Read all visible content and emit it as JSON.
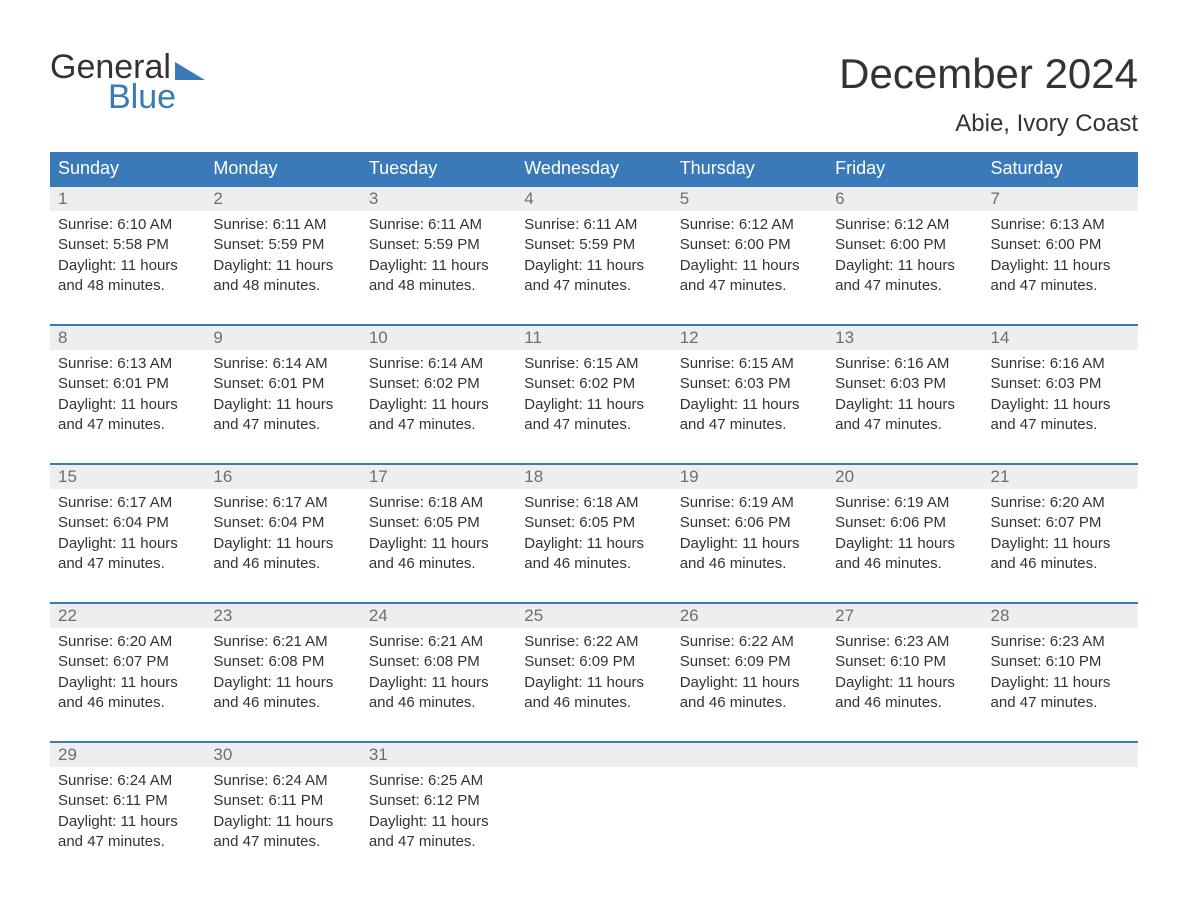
{
  "logo": {
    "word1": "General",
    "word2": "Blue",
    "triangle_color": "#3a7ab8"
  },
  "title": "December 2024",
  "location": "Abie, Ivory Coast",
  "header_bg": "#3a7ab8",
  "header_text_color": "#ffffff",
  "daynum_bg": "#eeeeee",
  "daynum_border": "#3a7ab8",
  "daynum_color": "#6e6e6e",
  "body_text_color": "#333333",
  "days": [
    "Sunday",
    "Monday",
    "Tuesday",
    "Wednesday",
    "Thursday",
    "Friday",
    "Saturday"
  ],
  "weeks": [
    [
      {
        "n": "1",
        "sr": "Sunrise: 6:10 AM",
        "ss": "Sunset: 5:58 PM",
        "d1": "Daylight: 11 hours",
        "d2": "and 48 minutes."
      },
      {
        "n": "2",
        "sr": "Sunrise: 6:11 AM",
        "ss": "Sunset: 5:59 PM",
        "d1": "Daylight: 11 hours",
        "d2": "and 48 minutes."
      },
      {
        "n": "3",
        "sr": "Sunrise: 6:11 AM",
        "ss": "Sunset: 5:59 PM",
        "d1": "Daylight: 11 hours",
        "d2": "and 48 minutes."
      },
      {
        "n": "4",
        "sr": "Sunrise: 6:11 AM",
        "ss": "Sunset: 5:59 PM",
        "d1": "Daylight: 11 hours",
        "d2": "and 47 minutes."
      },
      {
        "n": "5",
        "sr": "Sunrise: 6:12 AM",
        "ss": "Sunset: 6:00 PM",
        "d1": "Daylight: 11 hours",
        "d2": "and 47 minutes."
      },
      {
        "n": "6",
        "sr": "Sunrise: 6:12 AM",
        "ss": "Sunset: 6:00 PM",
        "d1": "Daylight: 11 hours",
        "d2": "and 47 minutes."
      },
      {
        "n": "7",
        "sr": "Sunrise: 6:13 AM",
        "ss": "Sunset: 6:00 PM",
        "d1": "Daylight: 11 hours",
        "d2": "and 47 minutes."
      }
    ],
    [
      {
        "n": "8",
        "sr": "Sunrise: 6:13 AM",
        "ss": "Sunset: 6:01 PM",
        "d1": "Daylight: 11 hours",
        "d2": "and 47 minutes."
      },
      {
        "n": "9",
        "sr": "Sunrise: 6:14 AM",
        "ss": "Sunset: 6:01 PM",
        "d1": "Daylight: 11 hours",
        "d2": "and 47 minutes."
      },
      {
        "n": "10",
        "sr": "Sunrise: 6:14 AM",
        "ss": "Sunset: 6:02 PM",
        "d1": "Daylight: 11 hours",
        "d2": "and 47 minutes."
      },
      {
        "n": "11",
        "sr": "Sunrise: 6:15 AM",
        "ss": "Sunset: 6:02 PM",
        "d1": "Daylight: 11 hours",
        "d2": "and 47 minutes."
      },
      {
        "n": "12",
        "sr": "Sunrise: 6:15 AM",
        "ss": "Sunset: 6:03 PM",
        "d1": "Daylight: 11 hours",
        "d2": "and 47 minutes."
      },
      {
        "n": "13",
        "sr": "Sunrise: 6:16 AM",
        "ss": "Sunset: 6:03 PM",
        "d1": "Daylight: 11 hours",
        "d2": "and 47 minutes."
      },
      {
        "n": "14",
        "sr": "Sunrise: 6:16 AM",
        "ss": "Sunset: 6:03 PM",
        "d1": "Daylight: 11 hours",
        "d2": "and 47 minutes."
      }
    ],
    [
      {
        "n": "15",
        "sr": "Sunrise: 6:17 AM",
        "ss": "Sunset: 6:04 PM",
        "d1": "Daylight: 11 hours",
        "d2": "and 47 minutes."
      },
      {
        "n": "16",
        "sr": "Sunrise: 6:17 AM",
        "ss": "Sunset: 6:04 PM",
        "d1": "Daylight: 11 hours",
        "d2": "and 46 minutes."
      },
      {
        "n": "17",
        "sr": "Sunrise: 6:18 AM",
        "ss": "Sunset: 6:05 PM",
        "d1": "Daylight: 11 hours",
        "d2": "and 46 minutes."
      },
      {
        "n": "18",
        "sr": "Sunrise: 6:18 AM",
        "ss": "Sunset: 6:05 PM",
        "d1": "Daylight: 11 hours",
        "d2": "and 46 minutes."
      },
      {
        "n": "19",
        "sr": "Sunrise: 6:19 AM",
        "ss": "Sunset: 6:06 PM",
        "d1": "Daylight: 11 hours",
        "d2": "and 46 minutes."
      },
      {
        "n": "20",
        "sr": "Sunrise: 6:19 AM",
        "ss": "Sunset: 6:06 PM",
        "d1": "Daylight: 11 hours",
        "d2": "and 46 minutes."
      },
      {
        "n": "21",
        "sr": "Sunrise: 6:20 AM",
        "ss": "Sunset: 6:07 PM",
        "d1": "Daylight: 11 hours",
        "d2": "and 46 minutes."
      }
    ],
    [
      {
        "n": "22",
        "sr": "Sunrise: 6:20 AM",
        "ss": "Sunset: 6:07 PM",
        "d1": "Daylight: 11 hours",
        "d2": "and 46 minutes."
      },
      {
        "n": "23",
        "sr": "Sunrise: 6:21 AM",
        "ss": "Sunset: 6:08 PM",
        "d1": "Daylight: 11 hours",
        "d2": "and 46 minutes."
      },
      {
        "n": "24",
        "sr": "Sunrise: 6:21 AM",
        "ss": "Sunset: 6:08 PM",
        "d1": "Daylight: 11 hours",
        "d2": "and 46 minutes."
      },
      {
        "n": "25",
        "sr": "Sunrise: 6:22 AM",
        "ss": "Sunset: 6:09 PM",
        "d1": "Daylight: 11 hours",
        "d2": "and 46 minutes."
      },
      {
        "n": "26",
        "sr": "Sunrise: 6:22 AM",
        "ss": "Sunset: 6:09 PM",
        "d1": "Daylight: 11 hours",
        "d2": "and 46 minutes."
      },
      {
        "n": "27",
        "sr": "Sunrise: 6:23 AM",
        "ss": "Sunset: 6:10 PM",
        "d1": "Daylight: 11 hours",
        "d2": "and 46 minutes."
      },
      {
        "n": "28",
        "sr": "Sunrise: 6:23 AM",
        "ss": "Sunset: 6:10 PM",
        "d1": "Daylight: 11 hours",
        "d2": "and 47 minutes."
      }
    ],
    [
      {
        "n": "29",
        "sr": "Sunrise: 6:24 AM",
        "ss": "Sunset: 6:11 PM",
        "d1": "Daylight: 11 hours",
        "d2": "and 47 minutes."
      },
      {
        "n": "30",
        "sr": "Sunrise: 6:24 AM",
        "ss": "Sunset: 6:11 PM",
        "d1": "Daylight: 11 hours",
        "d2": "and 47 minutes."
      },
      {
        "n": "31",
        "sr": "Sunrise: 6:25 AM",
        "ss": "Sunset: 6:12 PM",
        "d1": "Daylight: 11 hours",
        "d2": "and 47 minutes."
      },
      null,
      null,
      null,
      null
    ]
  ]
}
